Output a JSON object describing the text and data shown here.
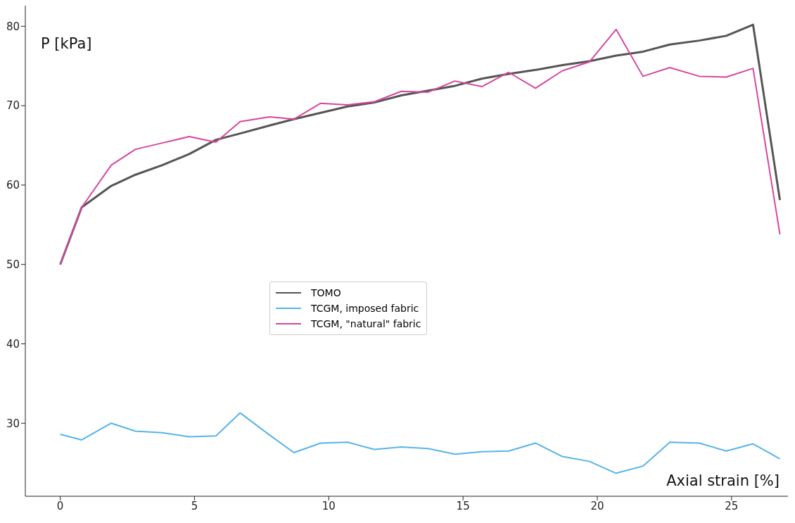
{
  "chart_data": {
    "type": "line",
    "xlabel": "Axial strain [%]",
    "ylabel": "P [kPa]",
    "x": [
      0,
      0.8,
      1.9,
      2.8,
      3.8,
      4.8,
      5.8,
      6.7,
      7.8,
      8.7,
      9.7,
      10.7,
      11.7,
      12.7,
      13.7,
      14.7,
      15.7,
      16.7,
      17.7,
      18.7,
      19.7,
      20.7,
      21.7,
      22.7,
      23.8,
      24.8,
      25.8,
      26.8
    ],
    "series": [
      {
        "name": "TOMO",
        "color": "#555555",
        "values": [
          50,
          57.2,
          59.9,
          61.3,
          62.5,
          63.9,
          65.7,
          66.5,
          67.5,
          68.3,
          69.1,
          69.9,
          70.4,
          71.3,
          71.9,
          72.5,
          73.4,
          74.0,
          74.5,
          75.1,
          75.6,
          76.3,
          76.8,
          77.7,
          78.2,
          78.8,
          80.2,
          58.1
        ]
      },
      {
        "name": "TCGM, imposed fabric",
        "color": "#56b4e9",
        "values": [
          28.6,
          27.9,
          30.0,
          29.0,
          28.8,
          28.3,
          28.4,
          31.3,
          28.5,
          26.3,
          27.5,
          27.6,
          26.7,
          27.0,
          26.8,
          26.1,
          26.4,
          26.5,
          27.5,
          25.8,
          25.2,
          23.7,
          24.6,
          27.6,
          27.5,
          26.5,
          27.4,
          25.5
        ]
      },
      {
        "name": "TCGM, \"natural\" fabric",
        "color": "#d6479e",
        "values": [
          50,
          57.2,
          62.5,
          64.5,
          65.3,
          66.1,
          65.4,
          68.0,
          68.6,
          68.3,
          70.3,
          70.1,
          70.5,
          71.8,
          71.7,
          73.1,
          72.4,
          74.2,
          72.2,
          74.4,
          75.5,
          79.6,
          73.7,
          74.8,
          73.7,
          73.6,
          74.7,
          53.8
        ]
      }
    ],
    "xlim": [
      -1.3,
      27.1
    ],
    "xticks": [
      0,
      5,
      10,
      15,
      20,
      25
    ],
    "ylim": [
      20.8,
      82.6
    ],
    "yticks": [
      30,
      40,
      50,
      60,
      70,
      80
    ],
    "grid": false,
    "legend": "center",
    "marker": "none",
    "line_style": "solid"
  }
}
